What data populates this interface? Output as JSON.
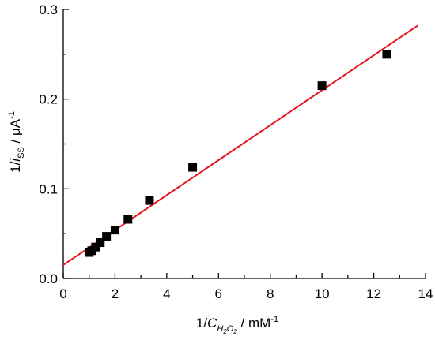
{
  "chart_data": {
    "type": "scatter",
    "xlabel": {
      "prefix": "1/",
      "var": "C",
      "sub1": "H",
      "sub2": "2",
      "sub3": "O",
      "sub4": "2",
      "unit": " / mM",
      "unit_sup": "-1"
    },
    "ylabel": {
      "prefix": "1/",
      "var": "i",
      "sub": "SS",
      "unit": " / μA",
      "unit_sup": "-1"
    },
    "xlim": [
      0,
      14
    ],
    "ylim": [
      0,
      0.3
    ],
    "xticks": [
      "0",
      "2",
      "4",
      "6",
      "8",
      "10",
      "12",
      "14"
    ],
    "yticks": [
      "0.0",
      "0.1",
      "0.2",
      "0.3"
    ],
    "points": [
      {
        "x": 1.0,
        "y": 0.029
      },
      {
        "x": 1.1,
        "y": 0.031
      },
      {
        "x": 1.25,
        "y": 0.035
      },
      {
        "x": 1.43,
        "y": 0.04
      },
      {
        "x": 1.67,
        "y": 0.047
      },
      {
        "x": 2.0,
        "y": 0.054
      },
      {
        "x": 2.5,
        "y": 0.066
      },
      {
        "x": 3.33,
        "y": 0.087
      },
      {
        "x": 5.0,
        "y": 0.124
      },
      {
        "x": 10.0,
        "y": 0.215
      },
      {
        "x": 12.5,
        "y": 0.25
      }
    ],
    "fit_line": {
      "x": [
        0,
        13.7
      ],
      "y": [
        0.015,
        0.282
      ]
    },
    "colors": {
      "points": "#000000",
      "fit": "#e8141c"
    },
    "grid": false,
    "legend": "none"
  }
}
